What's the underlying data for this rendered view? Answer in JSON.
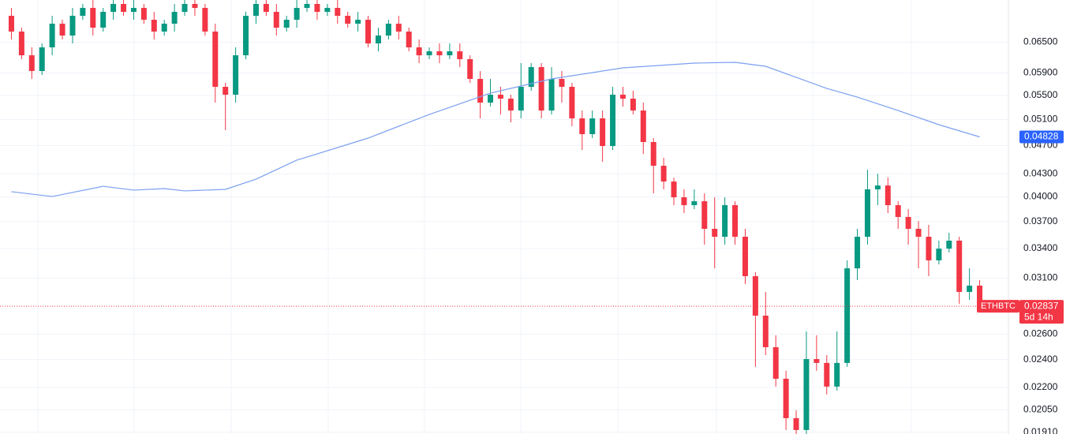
{
  "chart_data": {
    "type": "candlestick",
    "symbol": "ETHBTC",
    "countdown": "5d 14h",
    "log_scale": true,
    "grid": true,
    "up_color": "#089981",
    "down_color": "#f23645",
    "categories": [
      null,
      null,
      null,
      null,
      null,
      null,
      null,
      null,
      null,
      null,
      null,
      null,
      null,
      null,
      null,
      null,
      null,
      null,
      null,
      null,
      null,
      null,
      null,
      null,
      null,
      null,
      null,
      null,
      null,
      null,
      null,
      null,
      null,
      null,
      null,
      null,
      null,
      null,
      null,
      null,
      null,
      null,
      null,
      null,
      null,
      null,
      null,
      null,
      null,
      null,
      null,
      null,
      null,
      null,
      null,
      null,
      null,
      null,
      null,
      null,
      null,
      null,
      null,
      null,
      null,
      null,
      null,
      null,
      null,
      null,
      null,
      null,
      null,
      null,
      null,
      null,
      null,
      null,
      null,
      null,
      null,
      null,
      null,
      null,
      null,
      null,
      null,
      null,
      null,
      null,
      null,
      null,
      null,
      null,
      null,
      null
    ],
    "open": [
      0.07061,
      0.0672,
      0.06238,
      0.05937,
      0.06395,
      0.06888,
      0.06637,
      0.07061,
      0.07238,
      0.06803,
      0.07149,
      0.07329,
      0.07149,
      0.07238,
      0.06974,
      0.0672,
      0.06888,
      0.07149,
      0.07329,
      0.07238,
      0.0672,
      0.0565,
      0.05512,
      0.06238,
      0.07061,
      0.07329,
      0.07149,
      0.06803,
      0.06974,
      0.07238,
      0.07329,
      0.07149,
      0.07238,
      0.07061,
      0.06888,
      0.06974,
      0.06475,
      0.06637,
      0.06888,
      0.0672,
      0.06395,
      0.06238,
      0.06316,
      0.06238,
      0.06316,
      0.06162,
      0.05792,
      0.05377,
      0.05512,
      0.05444,
      0.05245,
      0.0565,
      0.06011,
      0.05245,
      0.05792,
      0.0565,
      0.05117,
      0.0487,
      0.05117,
      0.04692,
      0.05512,
      0.05444,
      0.05245,
      0.04751,
      0.0441,
      0.04197,
      0.03994,
      0.03897,
      0.03945,
      0.03618,
      0.03529,
      0.03897,
      0.03529,
      0.03118,
      0.02755,
      0.02495,
      0.0226,
      0.01997,
      0.01924,
      0.02404,
      0.02375,
      0.02205,
      0.02375,
      0.03196,
      0.03529,
      0.04095,
      0.04145,
      0.03897,
      0.03755,
      0.03618,
      0.03529,
      0.03277,
      0.034,
      0.03486,
      0.02968,
      0.03027
    ],
    "high": [
      0.07238,
      0.06803,
      0.06395,
      0.06475,
      0.07061,
      0.06974,
      0.07238,
      0.07329,
      0.0742,
      0.07238,
      0.0742,
      0.0742,
      0.0742,
      0.07329,
      0.07149,
      0.06974,
      0.07329,
      0.0742,
      0.0742,
      0.07329,
      0.06888,
      0.05721,
      0.06395,
      0.07149,
      0.0742,
      0.0742,
      0.07329,
      0.07061,
      0.0742,
      0.0742,
      0.0742,
      0.07329,
      0.0742,
      0.07149,
      0.07149,
      0.07061,
      0.06803,
      0.06974,
      0.07061,
      0.06803,
      0.06555,
      0.06395,
      0.06475,
      0.06475,
      0.06475,
      0.06238,
      0.05937,
      0.05792,
      0.0565,
      0.05512,
      0.06086,
      0.06086,
      0.06086,
      0.06011,
      0.05937,
      0.05721,
      0.05245,
      0.05245,
      0.05245,
      0.0565,
      0.0565,
      0.05581,
      0.05377,
      0.0481,
      0.04521,
      0.04249,
      0.04095,
      0.04095,
      0.04044,
      0.03994,
      0.03994,
      0.03945,
      0.03618,
      0.03157,
      0.02968,
      0.0259,
      0.02317,
      0.02047,
      0.02622,
      0.0259,
      0.02434,
      0.02622,
      0.03277,
      0.03618,
      0.04356,
      0.04302,
      0.04249,
      0.03945,
      0.03849,
      0.03708,
      0.03663,
      0.03486,
      0.03573,
      0.03529,
      0.03196,
      0.0308
    ],
    "low": [
      0.06555,
      0.06162,
      0.05792,
      0.05864,
      0.06238,
      0.06555,
      0.06475,
      0.06974,
      0.06637,
      0.0672,
      0.06974,
      0.07061,
      0.06974,
      0.06888,
      0.06555,
      0.06637,
      0.0672,
      0.07061,
      0.07061,
      0.06637,
      0.05377,
      0.04931,
      0.05377,
      0.06162,
      0.06888,
      0.07061,
      0.06637,
      0.0672,
      0.06803,
      0.07149,
      0.06974,
      0.07061,
      0.06888,
      0.06803,
      0.0672,
      0.06395,
      0.06316,
      0.06555,
      0.06555,
      0.06316,
      0.06086,
      0.06162,
      0.06086,
      0.06162,
      0.06011,
      0.05721,
      0.05117,
      0.05311,
      0.05181,
      0.05054,
      0.05117,
      0.05581,
      0.05117,
      0.05181,
      0.05377,
      0.04992,
      0.04634,
      0.0481,
      0.04465,
      0.04634,
      0.05311,
      0.05181,
      0.04577,
      0.04044,
      0.04095,
      0.03897,
      0.03801,
      0.03849,
      0.03443,
      0.03196,
      0.03443,
      0.03443,
      0.03042,
      0.02346,
      0.02434,
      0.02205,
      0.01924,
      0.019,
      0.019,
      0.02317,
      0.02151,
      0.02178,
      0.02346,
      0.0308,
      0.03443,
      0.03897,
      0.03801,
      0.03618,
      0.03443,
      0.03196,
      0.03118,
      0.03236,
      0.03359,
      0.02859,
      0.02895,
      0.02824
    ],
    "close": [
      0.0672,
      0.06238,
      0.05937,
      0.06395,
      0.06888,
      0.06637,
      0.07061,
      0.07238,
      0.06803,
      0.07149,
      0.07329,
      0.07149,
      0.07238,
      0.06974,
      0.0672,
      0.06888,
      0.07149,
      0.07329,
      0.07238,
      0.0672,
      0.0565,
      0.05512,
      0.06238,
      0.07061,
      0.07329,
      0.07149,
      0.06803,
      0.06974,
      0.07238,
      0.07329,
      0.07149,
      0.07238,
      0.07061,
      0.06888,
      0.06974,
      0.06475,
      0.06637,
      0.06888,
      0.0672,
      0.06395,
      0.06238,
      0.06316,
      0.06238,
      0.06316,
      0.06162,
      0.05792,
      0.05377,
      0.05512,
      0.05444,
      0.05245,
      0.0565,
      0.06011,
      0.05245,
      0.05792,
      0.0565,
      0.05117,
      0.0487,
      0.05117,
      0.04692,
      0.05512,
      0.05444,
      0.05245,
      0.04751,
      0.0441,
      0.04197,
      0.03994,
      0.03897,
      0.03945,
      0.03618,
      0.03529,
      0.03897,
      0.03529,
      0.03118,
      0.02755,
      0.02495,
      0.0226,
      0.01997,
      0.01924,
      0.02404,
      0.02375,
      0.02205,
      0.02375,
      0.03196,
      0.03529,
      0.04095,
      0.04145,
      0.03897,
      0.03755,
      0.03618,
      0.03529,
      0.03277,
      0.034,
      0.03486,
      0.02968,
      0.03027,
      0.02837
    ],
    "ma": {
      "color": "#7b9ff0",
      "label_color": "#2962ff",
      "x": [
        0,
        4,
        9,
        12,
        15,
        17,
        21,
        24,
        28,
        35,
        41,
        47,
        53,
        60,
        67,
        71,
        74,
        80,
        83,
        87,
        91,
        95
      ],
      "values": [
        0.04065,
        0.04004,
        0.04135,
        0.04085,
        0.04105,
        0.04075,
        0.04095,
        0.04228,
        0.04488,
        0.0481,
        0.05181,
        0.05539,
        0.05792,
        0.05996,
        0.06086,
        0.06101,
        0.06026,
        0.05622,
        0.05471,
        0.05245,
        0.05017,
        0.04828
      ]
    },
    "ylim": [
      0.019,
      0.0742
    ],
    "yticks": [
      {
        "value": 0.065,
        "label": "0.06500"
      },
      {
        "value": 0.059,
        "label": "0.05900"
      },
      {
        "value": 0.055,
        "label": "0.05500"
      },
      {
        "value": 0.051,
        "label": "0.05100"
      },
      {
        "value": 0.047,
        "label": "0.04700"
      },
      {
        "value": 0.043,
        "label": "0.04300"
      },
      {
        "value": 0.04,
        "label": "0.04000"
      },
      {
        "value": 0.037,
        "label": "0.03700"
      },
      {
        "value": 0.034,
        "label": "0.03400"
      },
      {
        "value": 0.031,
        "label": "0.03100"
      },
      {
        "value": 0.026,
        "label": "0.02600"
      },
      {
        "value": 0.024,
        "label": "0.02400"
      },
      {
        "value": 0.022,
        "label": "0.02200"
      },
      {
        "value": 0.0205,
        "label": "0.02050"
      },
      {
        "value": 0.0191,
        "label": "0.01910"
      }
    ]
  }
}
